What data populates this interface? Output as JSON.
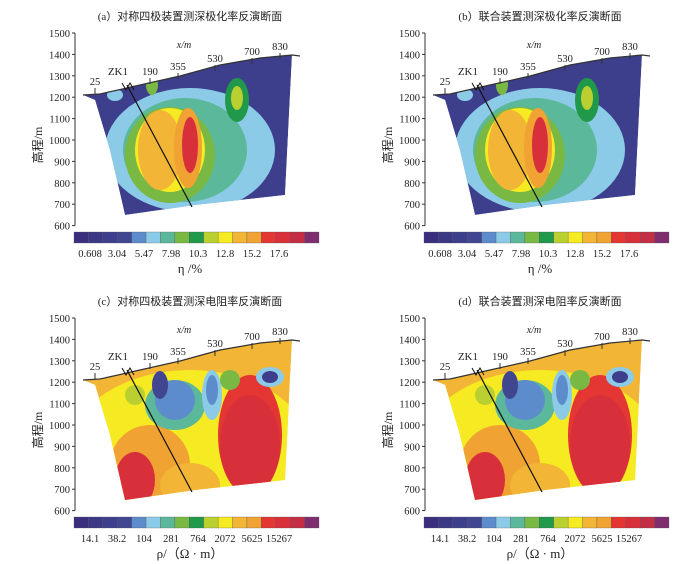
{
  "chart_data": [
    {
      "type": "heatmap",
      "id": "a",
      "title": "(a）对称四极装置测深极化率反演断面",
      "ylabel": "高程/m",
      "xlabel": "x/m",
      "yticks": [
        1500,
        1400,
        1300,
        1200,
        1100,
        1000,
        900,
        800,
        700,
        600
      ],
      "ylim": [
        600,
        1500
      ],
      "x_marks": [
        "25",
        "190",
        "355",
        "530",
        "700",
        "830"
      ],
      "borehole": "ZK1",
      "colorbar_labels": [
        "0.608",
        "3.04",
        "5.47",
        "7.98",
        "10.3",
        "12.8",
        "15.2",
        "17.6"
      ],
      "colorbar_title": "η /%",
      "variable": "eta"
    },
    {
      "type": "heatmap",
      "id": "b",
      "title": "(b）联合装置测深极化率反演断面",
      "ylabel": "高程/m",
      "xlabel": "x/m",
      "yticks": [
        1500,
        1400,
        1300,
        1200,
        1100,
        1000,
        900,
        800,
        700,
        600
      ],
      "ylim": [
        600,
        1500
      ],
      "x_marks": [
        "25",
        "190",
        "355",
        "530",
        "700",
        "830"
      ],
      "borehole": "ZK1",
      "colorbar_labels": [
        "0.608",
        "3.04",
        "5.47",
        "7.98",
        "10.3",
        "12.8",
        "15.2",
        "17.6"
      ],
      "colorbar_title": "η /%",
      "variable": "eta"
    },
    {
      "type": "heatmap",
      "id": "c",
      "title": "(c）对称四极装置测深电阻率反演断面",
      "ylabel": "高程/m",
      "xlabel": "x/m",
      "yticks": [
        1500,
        1400,
        1300,
        1200,
        1100,
        1000,
        900,
        800,
        700,
        600
      ],
      "ylim": [
        600,
        1500
      ],
      "x_marks": [
        "25",
        "190",
        "355",
        "530",
        "700",
        "830"
      ],
      "borehole": "ZK1",
      "colorbar_labels": [
        "14.1",
        "38.2",
        "104",
        "281",
        "764",
        "2072",
        "5625",
        "15267"
      ],
      "colorbar_title": "ρ/（Ω · m）",
      "variable": "rho"
    },
    {
      "type": "heatmap",
      "id": "d",
      "title": "(d）联合装置测深电阻率反演断面",
      "ylabel": "高程/m",
      "xlabel": "x/m",
      "yticks": [
        1500,
        1400,
        1300,
        1200,
        1100,
        1000,
        900,
        800,
        700,
        600
      ],
      "ylim": [
        600,
        1500
      ],
      "x_marks": [
        "25",
        "190",
        "355",
        "530",
        "700",
        "830"
      ],
      "borehole": "ZK1",
      "colorbar_labels": [
        "14.1",
        "38.2",
        "104",
        "281",
        "764",
        "2072",
        "5625",
        "15267"
      ],
      "colorbar_title": "ρ/（Ω · m）",
      "variable": "rho"
    }
  ],
  "colors": {
    "scale": [
      "#3a2f7e",
      "#3b3886",
      "#3d3f8c",
      "#404690",
      "#5c8ccb",
      "#8ccbe8",
      "#5cb89a",
      "#78b843",
      "#21994a",
      "#b9d030",
      "#f6ea22",
      "#f2b536",
      "#f0a232",
      "#e43632",
      "#d8303a",
      "#c52f45",
      "#7e2e6e"
    ]
  }
}
